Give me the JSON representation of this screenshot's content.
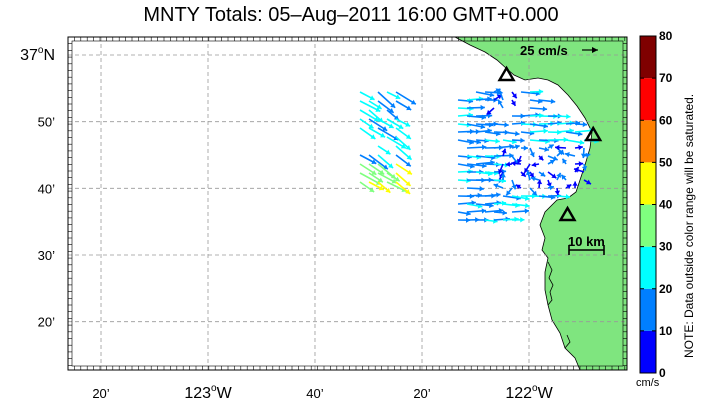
{
  "title": "MNTY Totals: 05–Aug–2011 16:00 GMT+0.000",
  "map": {
    "lat_labels": [
      {
        "label": "37",
        "suffix": "N",
        "lat": 37.0
      },
      {
        "label": "50’",
        "suffix": "",
        "lat": 36.8333
      },
      {
        "label": "40’",
        "suffix": "",
        "lat": 36.6667
      },
      {
        "label": "30’",
        "suffix": "",
        "lat": 36.5
      },
      {
        "label": "20’",
        "suffix": "",
        "lat": 36.3333
      }
    ],
    "lon_labels": [
      {
        "label": "20’",
        "suffix": "",
        "lon": -123.3333
      },
      {
        "label": "123",
        "suffix": "W",
        "lon": -123.0
      },
      {
        "label": "40’",
        "suffix": "",
        "lon": -122.6667
      },
      {
        "label": "20’",
        "suffix": "",
        "lon": -122.3333
      },
      {
        "label": "122",
        "suffix": "W",
        "lon": -122.0
      }
    ],
    "scale_arrow_label": "25 cm/s",
    "scale_bar_label": "10 km",
    "land_color": "#7fe57f",
    "stations": [
      {
        "lon": -122.07,
        "lat": 36.95
      },
      {
        "lon": -121.8,
        "lat": 36.8
      },
      {
        "lon": -121.88,
        "lat": 36.6
      }
    ]
  },
  "colorbar": {
    "ticks": [
      "0",
      "10",
      "20",
      "30",
      "40",
      "50",
      "60",
      "70",
      "80"
    ],
    "units": "cm/s",
    "note": "NOTE: Data outside color range will be saturated.",
    "colors": [
      "#0000ff",
      "#007fff",
      "#00ffff",
      "#7fff7f",
      "#ffff00",
      "#ff7f00",
      "#ff0000",
      "#7f0000"
    ]
  }
}
